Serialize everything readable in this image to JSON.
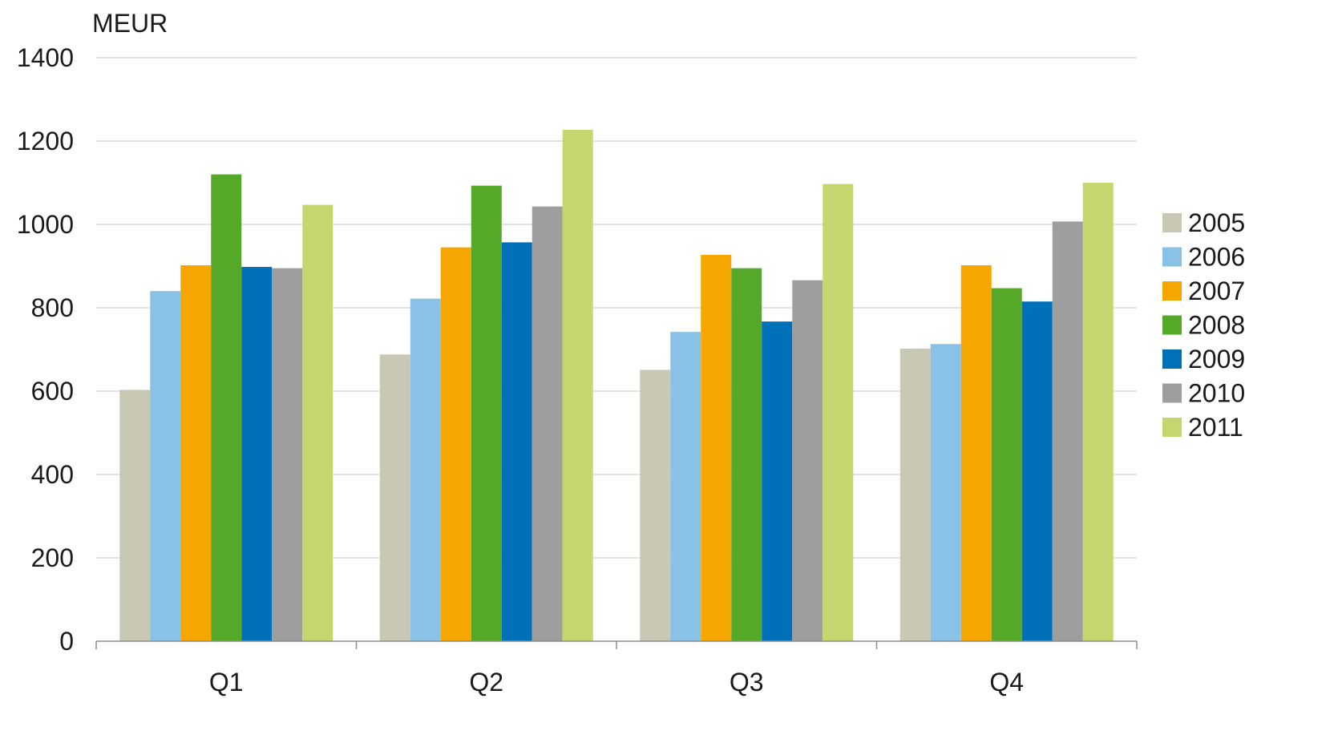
{
  "chart_data": {
    "type": "bar",
    "ylabel": "MEUR",
    "ylim": [
      0,
      1400
    ],
    "yticks": [
      0,
      200,
      400,
      600,
      800,
      1000,
      1200,
      1400
    ],
    "grid": true,
    "legend_position": "right",
    "categories": [
      "Q1",
      "Q2",
      "Q3",
      "Q4"
    ],
    "series": [
      {
        "name": "2005",
        "color": "#c8c8b4",
        "values": [
          603,
          688,
          651,
          702
        ]
      },
      {
        "name": "2006",
        "color": "#8ac1e6",
        "values": [
          840,
          822,
          742,
          713
        ]
      },
      {
        "name": "2007",
        "color": "#f5a600",
        "values": [
          902,
          945,
          927,
          902
        ]
      },
      {
        "name": "2008",
        "color": "#56a829",
        "values": [
          1120,
          1093,
          895,
          847
        ]
      },
      {
        "name": "2009",
        "color": "#0070b8",
        "values": [
          898,
          957,
          767,
          815
        ]
      },
      {
        "name": "2010",
        "color": "#9e9e9e",
        "values": [
          895,
          1043,
          866,
          1007
        ]
      },
      {
        "name": "2011",
        "color": "#c6d66e",
        "values": [
          1047,
          1227,
          1097,
          1100
        ]
      }
    ]
  }
}
